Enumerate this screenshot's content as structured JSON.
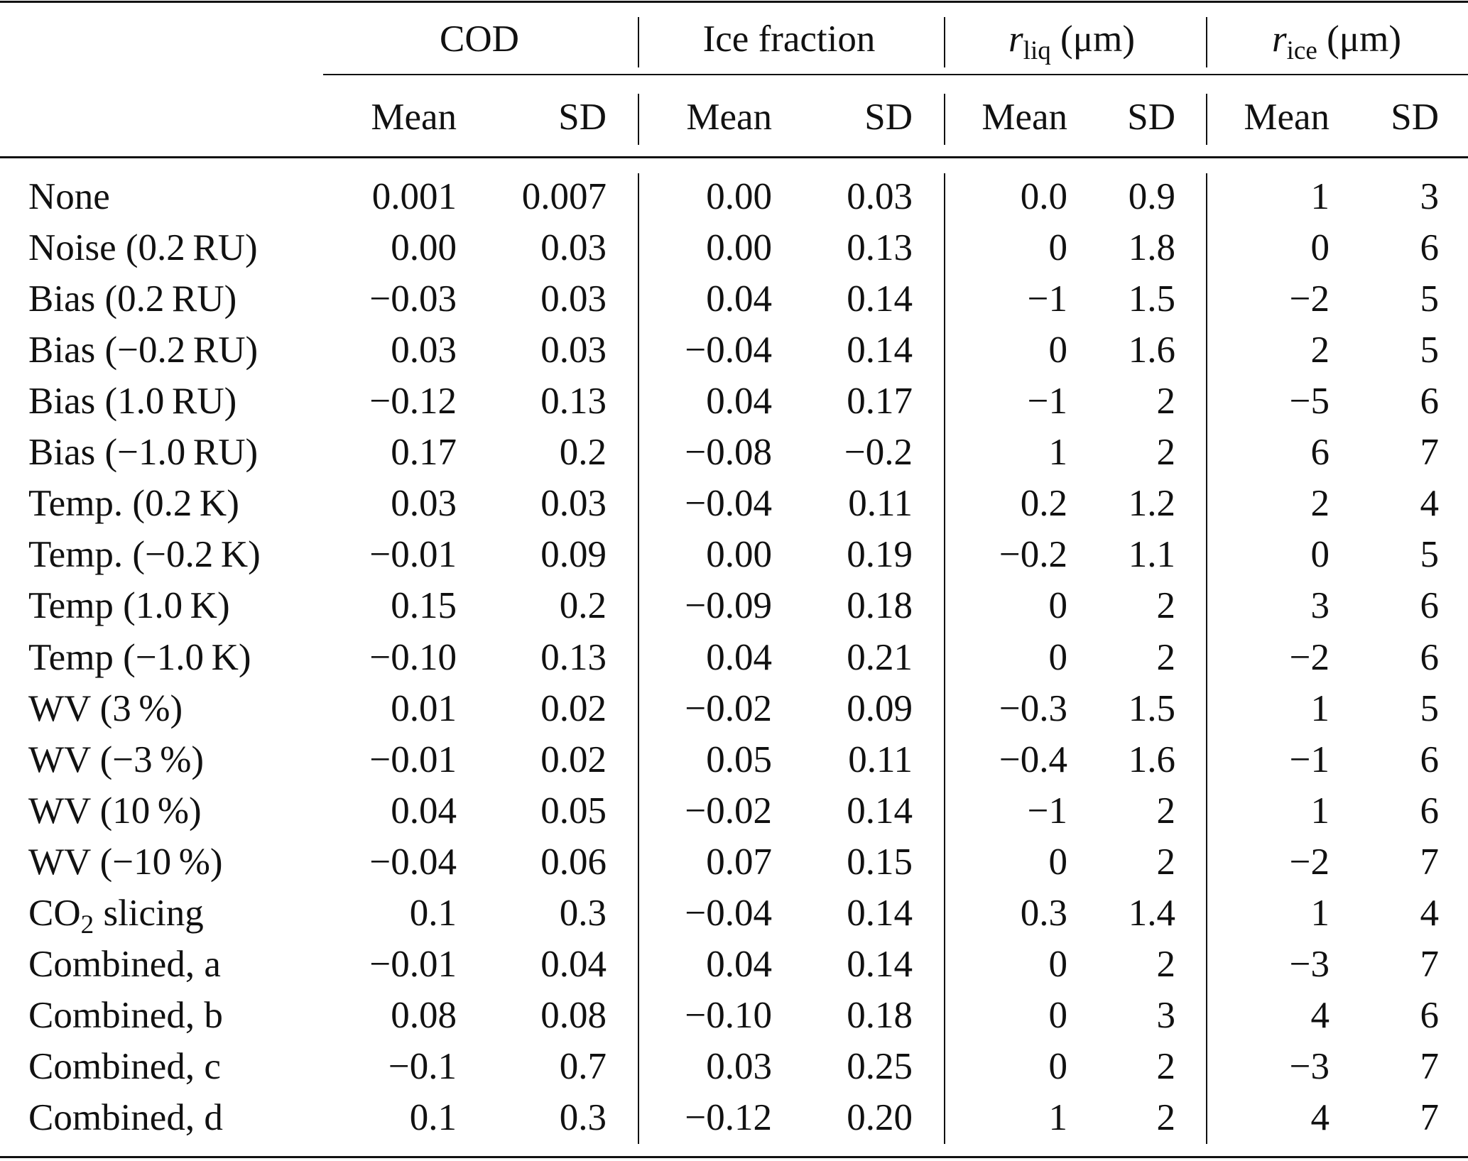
{
  "header": {
    "groups": [
      {
        "label": "COD"
      },
      {
        "label": "Ice fraction"
      },
      {
        "var": "r",
        "sub": "liq",
        "unit": " (μm)"
      },
      {
        "var": "r",
        "sub": "ice",
        "unit": " (μm)"
      }
    ],
    "subheaders": [
      "Mean",
      "SD",
      "Mean",
      "SD",
      "Mean",
      "SD",
      "Mean",
      "SD"
    ]
  },
  "rows": [
    {
      "label": "None",
      "cells": [
        "0.001",
        "0.007",
        "0.00",
        "0.03",
        "0.0",
        "0.9",
        "1",
        "3"
      ]
    },
    {
      "label": "Noise (0.2 RU)",
      "cells": [
        "0.00",
        "0.03",
        "0.00",
        "0.13",
        "0",
        "1.8",
        "0",
        "6"
      ]
    },
    {
      "label": "Bias (0.2 RU)",
      "cells": [
        "−0.03",
        "0.03",
        "0.04",
        "0.14",
        "−1",
        "1.5",
        "−2",
        "5"
      ]
    },
    {
      "label": "Bias (−0.2 RU)",
      "cells": [
        "0.03",
        "0.03",
        "−0.04",
        "0.14",
        "0",
        "1.6",
        "2",
        "5"
      ]
    },
    {
      "label": "Bias (1.0 RU)",
      "cells": [
        "−0.12",
        "0.13",
        "0.04",
        "0.17",
        "−1",
        "2",
        "−5",
        "6"
      ]
    },
    {
      "label": "Bias (−1.0 RU)",
      "cells": [
        "0.17",
        "0.2",
        "−0.08",
        "−0.2",
        "1",
        "2",
        "6",
        "7"
      ]
    },
    {
      "label": "Temp. (0.2 K)",
      "cells": [
        "0.03",
        "0.03",
        "−0.04",
        "0.11",
        "0.2",
        "1.2",
        "2",
        "4"
      ]
    },
    {
      "label": "Temp. (−0.2 K)",
      "cells": [
        "−0.01",
        "0.09",
        "0.00",
        "0.19",
        "−0.2",
        "1.1",
        "0",
        "5"
      ]
    },
    {
      "label": "Temp (1.0 K)",
      "cells": [
        "0.15",
        "0.2",
        "−0.09",
        "0.18",
        "0",
        "2",
        "3",
        "6"
      ]
    },
    {
      "label": "Temp (−1.0 K)",
      "cells": [
        "−0.10",
        "0.13",
        "0.04",
        "0.21",
        "0",
        "2",
        "−2",
        "6"
      ]
    },
    {
      "label": "WV (3 %)",
      "cells": [
        "0.01",
        "0.02",
        "−0.02",
        "0.09",
        "−0.3",
        "1.5",
        "1",
        "5"
      ]
    },
    {
      "label": "WV (−3 %)",
      "cells": [
        "−0.01",
        "0.02",
        "0.05",
        "0.11",
        "−0.4",
        "1.6",
        "−1",
        "6"
      ]
    },
    {
      "label": "WV (10 %)",
      "cells": [
        "0.04",
        "0.05",
        "−0.02",
        "0.14",
        "−1",
        "2",
        "1",
        "6"
      ]
    },
    {
      "label": "WV (−10 %)",
      "cells": [
        "−0.04",
        "0.06",
        "0.07",
        "0.15",
        "0",
        "2",
        "−2",
        "7"
      ]
    },
    {
      "label": {
        "main": "CO",
        "sub": "2",
        "rest": " slicing"
      },
      "cells": [
        "0.1",
        "0.3",
        "−0.04",
        "0.14",
        "0.3",
        "1.4",
        "1",
        "4"
      ]
    },
    {
      "label": "Combined, a",
      "cells": [
        "−0.01",
        "0.04",
        "0.04",
        "0.14",
        "0",
        "2",
        "−3",
        "7"
      ]
    },
    {
      "label": "Combined, b",
      "cells": [
        "0.08",
        "0.08",
        "−0.10",
        "0.18",
        "0",
        "3",
        "4",
        "6"
      ]
    },
    {
      "label": "Combined, c",
      "cells": [
        "−0.1",
        "0.7",
        "0.03",
        "0.25",
        "0",
        "2",
        "−3",
        "7"
      ]
    },
    {
      "label": "Combined, d",
      "cells": [
        "0.1",
        "0.3",
        "−0.12",
        "0.20",
        "1",
        "2",
        "4",
        "7"
      ]
    }
  ]
}
